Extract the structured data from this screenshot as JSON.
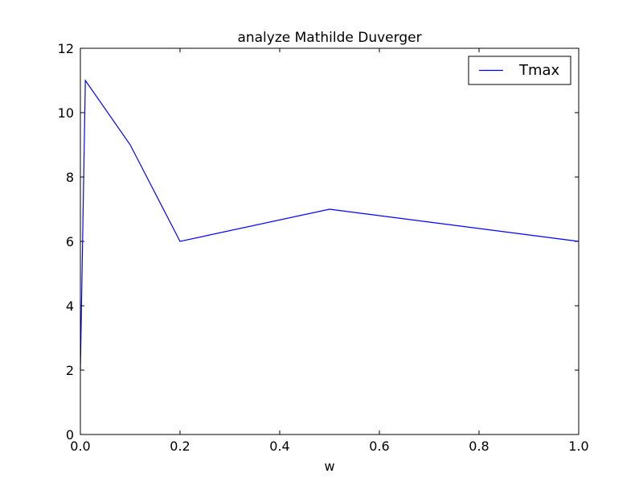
{
  "chart_data": {
    "type": "line",
    "title": "analyze Mathilde Duverger",
    "xlabel": "w",
    "ylabel": "",
    "xlim": [
      0,
      1.0
    ],
    "ylim": [
      0,
      12
    ],
    "xticks": [
      0.0,
      0.2,
      0.4,
      0.6,
      0.8,
      1.0
    ],
    "xtick_labels": [
      "0.0",
      "0.2",
      "0.4",
      "0.6",
      "0.8",
      "1.0"
    ],
    "yticks": [
      0,
      2,
      4,
      6,
      8,
      10,
      12
    ],
    "ytick_labels": [
      "0",
      "2",
      "4",
      "6",
      "8",
      "10",
      "12"
    ],
    "grid": false,
    "legend_position": "top-right",
    "series": [
      {
        "name": "Tmax",
        "color": "#0000ff",
        "x": [
          0.0,
          0.01,
          0.1,
          0.2,
          0.5,
          1.0
        ],
        "y": [
          2,
          11,
          9,
          6,
          7,
          6
        ]
      }
    ]
  }
}
